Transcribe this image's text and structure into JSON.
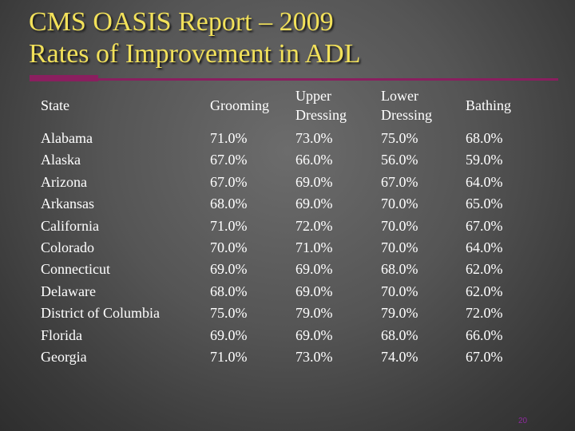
{
  "slide": {
    "title_lines": [
      "CMS OASIS Report – 2009",
      "Rates of Improvement in ADL"
    ],
    "page_number": "20"
  },
  "table": {
    "headers": [
      "State",
      "Grooming",
      "Upper Dressing",
      "Lower Dressing",
      "Bathing"
    ],
    "rows": [
      [
        "Alabama",
        "71.0%",
        "73.0%",
        "75.0%",
        "68.0%"
      ],
      [
        "Alaska",
        "67.0%",
        "66.0%",
        "56.0%",
        "59.0%"
      ],
      [
        "Arizona",
        "67.0%",
        "69.0%",
        "67.0%",
        "64.0%"
      ],
      [
        "Arkansas",
        "68.0%",
        "69.0%",
        "70.0%",
        "65.0%"
      ],
      [
        "California",
        "71.0%",
        "72.0%",
        "70.0%",
        "67.0%"
      ],
      [
        "Colorado",
        "70.0%",
        "71.0%",
        "70.0%",
        "64.0%"
      ],
      [
        "Connecticut",
        "69.0%",
        "69.0%",
        "68.0%",
        "62.0%"
      ],
      [
        "Delaware",
        "68.0%",
        "69.0%",
        "70.0%",
        "62.0%"
      ],
      [
        "District of Columbia",
        "75.0%",
        "79.0%",
        "79.0%",
        "72.0%"
      ],
      [
        "Florida",
        "69.0%",
        "69.0%",
        "68.0%",
        "66.0%"
      ],
      [
        "Georgia",
        "71.0%",
        "73.0%",
        "74.0%",
        "67.0%"
      ]
    ]
  },
  "colors": {
    "title": "#f2e15a",
    "rule": "#8a1f5f",
    "text": "#ffffff",
    "page_number": "#8e2a9e"
  }
}
